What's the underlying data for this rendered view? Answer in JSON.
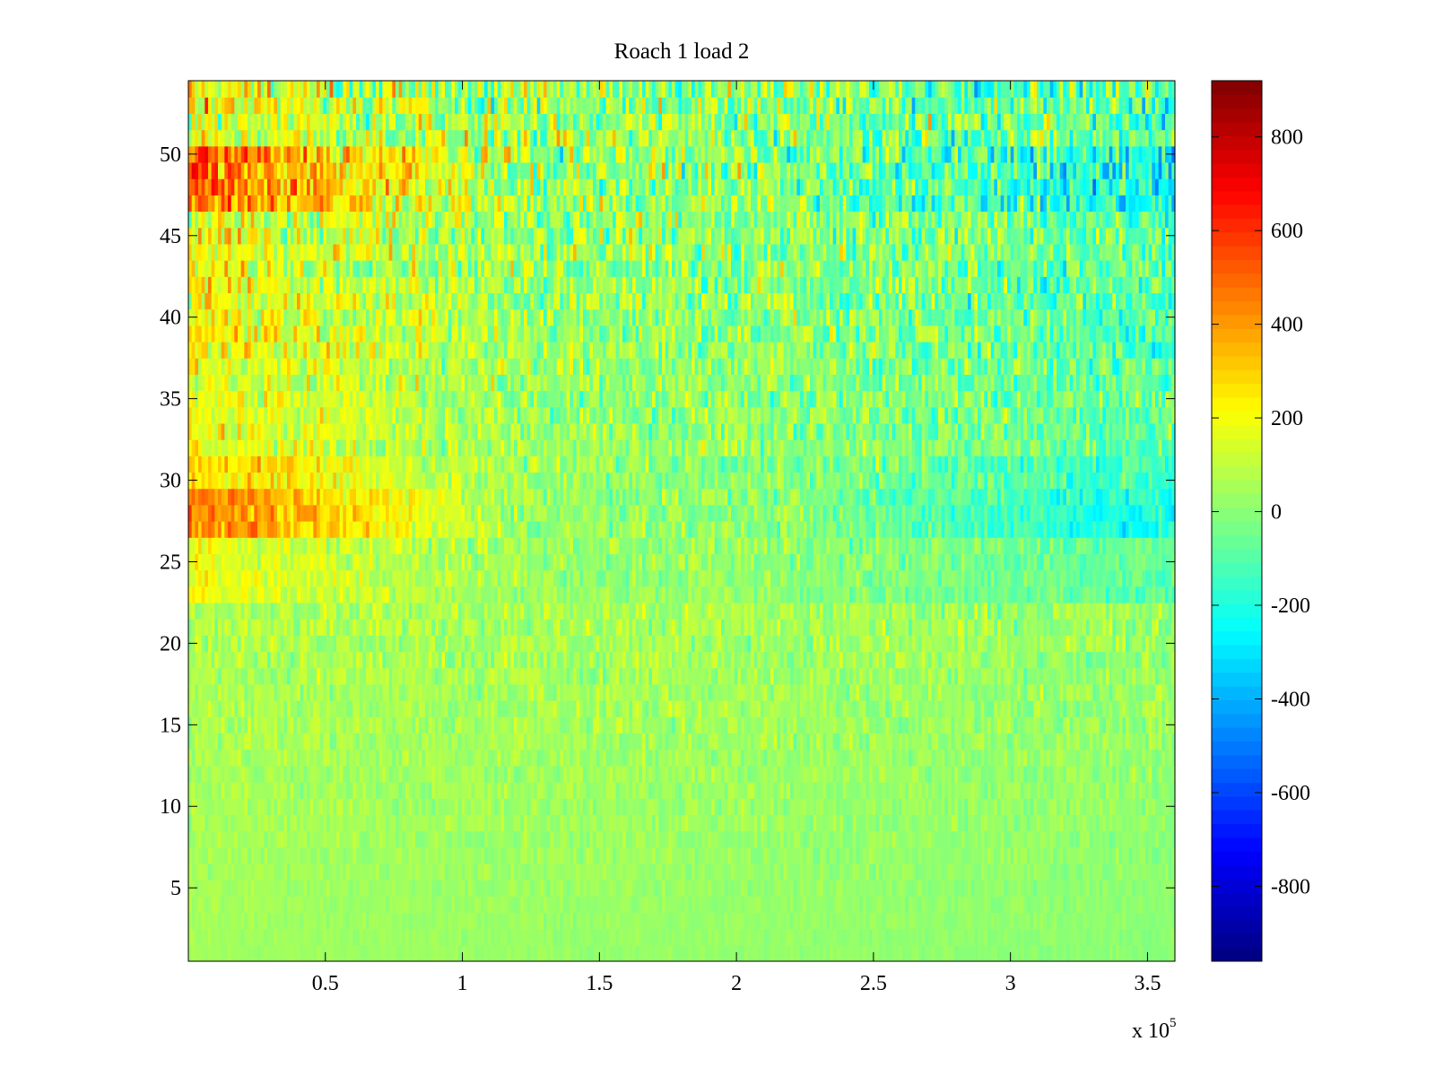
{
  "chart_data": {
    "type": "heatmap",
    "title": "Roach 1 load 2",
    "xlabel": "",
    "ylabel": "",
    "x_range": [
      0,
      360000
    ],
    "y_range": [
      0.5,
      54.5
    ],
    "x_ticks": [
      50000,
      100000,
      150000,
      200000,
      250000,
      300000,
      350000
    ],
    "x_tick_labels": [
      "0.5",
      "1",
      "1.5",
      "2",
      "2.5",
      "3",
      "3.5"
    ],
    "x_multiplier_base": "x 10",
    "x_multiplier_exponent": "5",
    "y_ticks": [
      5,
      10,
      15,
      20,
      25,
      30,
      35,
      40,
      45,
      50
    ],
    "y_tick_labels": [
      "5",
      "10",
      "15",
      "20",
      "25",
      "30",
      "35",
      "40",
      "45",
      "50"
    ],
    "rows": 54,
    "columnmap": "jet",
    "clim": [
      -960,
      920
    ],
    "colorbar_ticks": [
      800,
      600,
      400,
      200,
      0,
      -200,
      -400,
      -600,
      -800
    ],
    "colorbar_tick_labels": [
      "800",
      "600",
      "400",
      "200",
      "0",
      "-200",
      "-400",
      "-600",
      "-800"
    ],
    "grid": false,
    "row_profile_description": "values near 0 at low rows, increasingly variable above row 22; strong positive bands near rows 27-28 and 47-50 at early x, negative (blue) bands at late x around x=2.5e5-3.5e5"
  }
}
